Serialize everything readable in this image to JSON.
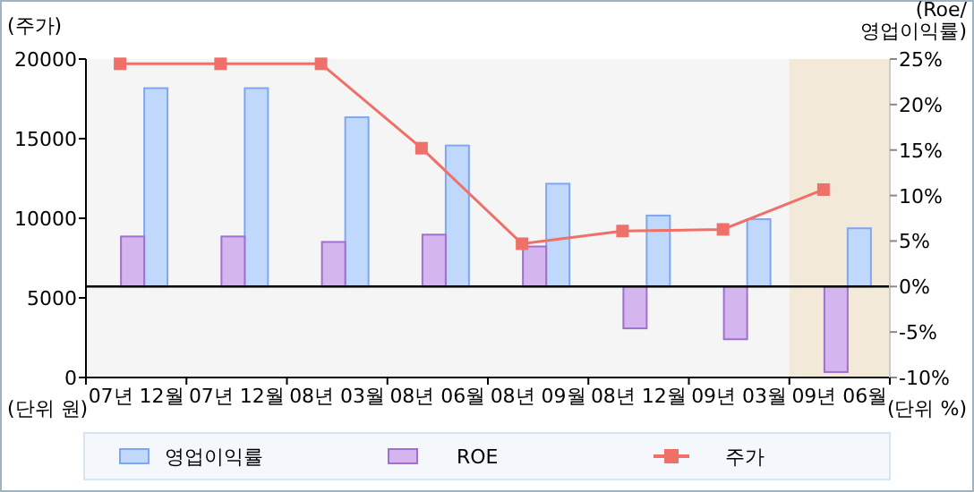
{
  "chart_data": {
    "type": "bar",
    "ylabel": "(주가)",
    "y2label": "(Roe/ 영업이익률)",
    "annotations": [
      "(단위 원)",
      "(단위 %)"
    ],
    "categories": [
      "07년 12월",
      "07년 12월",
      "08년 03월",
      "08년 06월",
      "08년 09월",
      "08년 12월",
      "09년 03월",
      "09년 06월"
    ],
    "series": [
      {
        "name": "영업이익률",
        "axis": "y2",
        "color": "#c0d8fb",
        "values": [
          21.8,
          21.8,
          18.6,
          15.5,
          11.3,
          7.8,
          7.4,
          6.4
        ]
      },
      {
        "name": "ROE",
        "axis": "y2",
        "color": "#d4b5ee",
        "values": [
          5.5,
          5.5,
          4.9,
          5.7,
          4.4,
          -4.6,
          -5.8,
          -9.4
        ]
      },
      {
        "name": "주가",
        "type": "line",
        "color": "#ee7068",
        "marker": "square",
        "values": [
          19700,
          19700,
          19700,
          14400,
          8400,
          9200,
          9300,
          11800
        ]
      }
    ],
    "ylim": [
      0,
      20000
    ],
    "yticks": [
      0,
      5000,
      10000,
      15000,
      20000
    ],
    "y2lim": [
      -10,
      25
    ],
    "y2ticks": [
      {
        "value": -10,
        "label": "-10%"
      },
      {
        "value": -5,
        "label": "-5%"
      },
      {
        "value": 0,
        "label": "0%"
      },
      {
        "value": 5,
        "label": "5%"
      },
      {
        "value": 10,
        "label": "10%"
      },
      {
        "value": 15,
        "label": "15%"
      },
      {
        "value": 20,
        "label": "20%"
      },
      {
        "value": 25,
        "label": "25%"
      }
    ],
    "bands": [
      {
        "axis": "x",
        "from": "09년 06월",
        "to": "09년 06월",
        "color": "#f3e9d9"
      }
    ],
    "ref_lines": [
      {
        "axis": "y2",
        "value": 0,
        "color": "#000000"
      }
    ],
    "grid": false,
    "legend": "bottom"
  }
}
